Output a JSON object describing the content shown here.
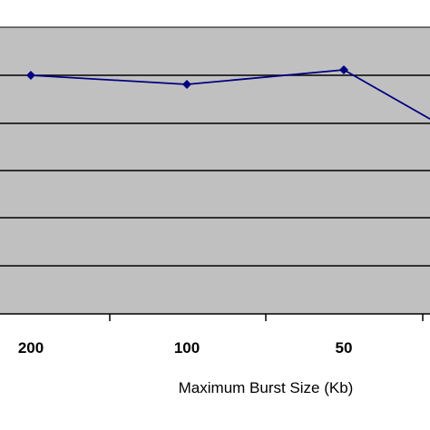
{
  "chart_data": {
    "type": "line",
    "categories": [
      "200",
      "100",
      "50",
      ""
    ],
    "series": [
      {
        "values": [
          83,
          93,
          77,
          175
        ]
      }
    ],
    "xlabel": "Maximum Burst Size (Kb)",
    "ylabel": "",
    "grid": true,
    "colors": {
      "plot_background": "#c0c0c0",
      "series_line": "#000080",
      "gridline": "#000000"
    }
  }
}
